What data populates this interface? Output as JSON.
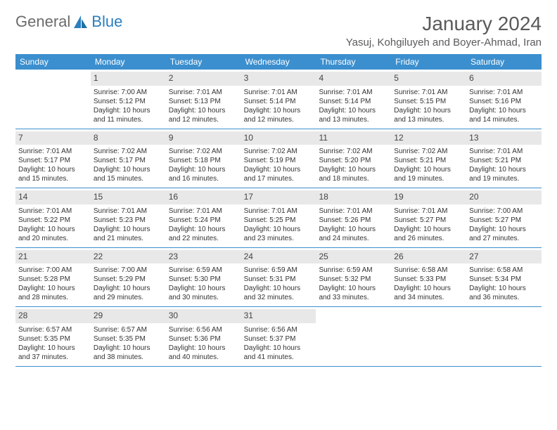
{
  "brand": {
    "word1": "General",
    "word2": "Blue"
  },
  "title": "January 2024",
  "location": "Yasuj, Kohgiluyeh and Boyer-Ahmad, Iran",
  "colors": {
    "header_bar": "#3b8fce",
    "header_text": "#ffffff",
    "daynum_bg": "#e8e8e8",
    "row_border": "#3b8fce",
    "body_text": "#333333",
    "title_text": "#5a5a5a",
    "logo_gray": "#6b6b6b",
    "logo_blue": "#2a7fbf",
    "background": "#ffffff"
  },
  "weekdays": [
    "Sunday",
    "Monday",
    "Tuesday",
    "Wednesday",
    "Thursday",
    "Friday",
    "Saturday"
  ],
  "first_weekday_index": 1,
  "days": [
    {
      "n": 1,
      "sr": "7:00 AM",
      "ss": "5:12 PM",
      "dl": "10 hours and 11 minutes."
    },
    {
      "n": 2,
      "sr": "7:01 AM",
      "ss": "5:13 PM",
      "dl": "10 hours and 12 minutes."
    },
    {
      "n": 3,
      "sr": "7:01 AM",
      "ss": "5:14 PM",
      "dl": "10 hours and 12 minutes."
    },
    {
      "n": 4,
      "sr": "7:01 AM",
      "ss": "5:14 PM",
      "dl": "10 hours and 13 minutes."
    },
    {
      "n": 5,
      "sr": "7:01 AM",
      "ss": "5:15 PM",
      "dl": "10 hours and 13 minutes."
    },
    {
      "n": 6,
      "sr": "7:01 AM",
      "ss": "5:16 PM",
      "dl": "10 hours and 14 minutes."
    },
    {
      "n": 7,
      "sr": "7:01 AM",
      "ss": "5:17 PM",
      "dl": "10 hours and 15 minutes."
    },
    {
      "n": 8,
      "sr": "7:02 AM",
      "ss": "5:17 PM",
      "dl": "10 hours and 15 minutes."
    },
    {
      "n": 9,
      "sr": "7:02 AM",
      "ss": "5:18 PM",
      "dl": "10 hours and 16 minutes."
    },
    {
      "n": 10,
      "sr": "7:02 AM",
      "ss": "5:19 PM",
      "dl": "10 hours and 17 minutes."
    },
    {
      "n": 11,
      "sr": "7:02 AM",
      "ss": "5:20 PM",
      "dl": "10 hours and 18 minutes."
    },
    {
      "n": 12,
      "sr": "7:02 AM",
      "ss": "5:21 PM",
      "dl": "10 hours and 19 minutes."
    },
    {
      "n": 13,
      "sr": "7:01 AM",
      "ss": "5:21 PM",
      "dl": "10 hours and 19 minutes."
    },
    {
      "n": 14,
      "sr": "7:01 AM",
      "ss": "5:22 PM",
      "dl": "10 hours and 20 minutes."
    },
    {
      "n": 15,
      "sr": "7:01 AM",
      "ss": "5:23 PM",
      "dl": "10 hours and 21 minutes."
    },
    {
      "n": 16,
      "sr": "7:01 AM",
      "ss": "5:24 PM",
      "dl": "10 hours and 22 minutes."
    },
    {
      "n": 17,
      "sr": "7:01 AM",
      "ss": "5:25 PM",
      "dl": "10 hours and 23 minutes."
    },
    {
      "n": 18,
      "sr": "7:01 AM",
      "ss": "5:26 PM",
      "dl": "10 hours and 24 minutes."
    },
    {
      "n": 19,
      "sr": "7:01 AM",
      "ss": "5:27 PM",
      "dl": "10 hours and 26 minutes."
    },
    {
      "n": 20,
      "sr": "7:00 AM",
      "ss": "5:27 PM",
      "dl": "10 hours and 27 minutes."
    },
    {
      "n": 21,
      "sr": "7:00 AM",
      "ss": "5:28 PM",
      "dl": "10 hours and 28 minutes."
    },
    {
      "n": 22,
      "sr": "7:00 AM",
      "ss": "5:29 PM",
      "dl": "10 hours and 29 minutes."
    },
    {
      "n": 23,
      "sr": "6:59 AM",
      "ss": "5:30 PM",
      "dl": "10 hours and 30 minutes."
    },
    {
      "n": 24,
      "sr": "6:59 AM",
      "ss": "5:31 PM",
      "dl": "10 hours and 32 minutes."
    },
    {
      "n": 25,
      "sr": "6:59 AM",
      "ss": "5:32 PM",
      "dl": "10 hours and 33 minutes."
    },
    {
      "n": 26,
      "sr": "6:58 AM",
      "ss": "5:33 PM",
      "dl": "10 hours and 34 minutes."
    },
    {
      "n": 27,
      "sr": "6:58 AM",
      "ss": "5:34 PM",
      "dl": "10 hours and 36 minutes."
    },
    {
      "n": 28,
      "sr": "6:57 AM",
      "ss": "5:35 PM",
      "dl": "10 hours and 37 minutes."
    },
    {
      "n": 29,
      "sr": "6:57 AM",
      "ss": "5:35 PM",
      "dl": "10 hours and 38 minutes."
    },
    {
      "n": 30,
      "sr": "6:56 AM",
      "ss": "5:36 PM",
      "dl": "10 hours and 40 minutes."
    },
    {
      "n": 31,
      "sr": "6:56 AM",
      "ss": "5:37 PM",
      "dl": "10 hours and 41 minutes."
    }
  ],
  "labels": {
    "sunrise": "Sunrise:",
    "sunset": "Sunset:",
    "daylight": "Daylight:"
  }
}
